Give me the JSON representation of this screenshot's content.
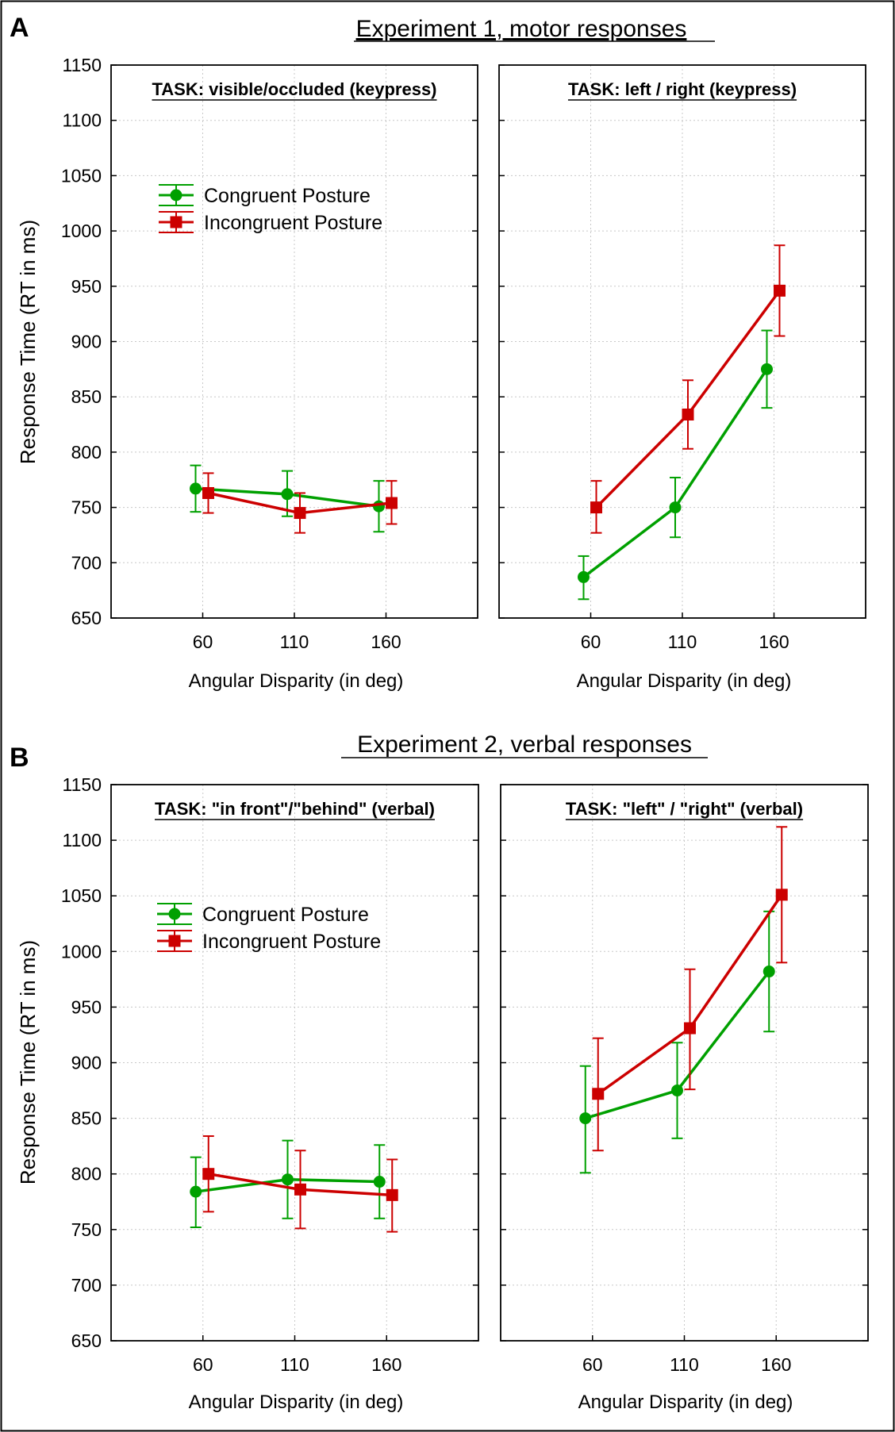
{
  "figure": {
    "panels": [
      {
        "letter": "A",
        "title": "Experiment 1, motor responses",
        "ylabel": "Response Time (RT in ms)",
        "xlabel": "Angular Disparity (in deg)"
      },
      {
        "letter": "B",
        "title": "Experiment 2, verbal responses",
        "ylabel": "Response Time (RT in ms)",
        "xlabel": "Angular Disparity (in deg)"
      }
    ],
    "legend": {
      "congruent": "Congruent Posture",
      "incongruent": "Incongruent Posture"
    },
    "y_ticks": [
      "650",
      "700",
      "750",
      "800",
      "850",
      "900",
      "950",
      "1000",
      "1050",
      "1100",
      "1150"
    ],
    "x_ticks": [
      "60",
      "110",
      "160"
    ]
  },
  "colors": {
    "congruent": "#00a000",
    "incongruent": "#cc0000",
    "grid": "#c8c8c8"
  },
  "chart_data": [
    {
      "type": "line",
      "panel": "A",
      "subtitle": "TASK: visible/occluded (keypress)",
      "title": "Experiment 1, motor responses",
      "xlabel": "Angular Disparity (in deg)",
      "ylabel": "Response Time (RT in ms)",
      "categories": [
        "60",
        "110",
        "160"
      ],
      "ylim": [
        650,
        1150
      ],
      "legend": true,
      "series": [
        {
          "name": "Congruent Posture",
          "values": [
            767,
            762,
            751
          ],
          "err_low": [
            746,
            742,
            728
          ],
          "err_high": [
            788,
            783,
            774
          ]
        },
        {
          "name": "Incongruent Posture",
          "values": [
            763,
            745,
            754
          ],
          "err_low": [
            745,
            727,
            735
          ],
          "err_high": [
            781,
            763,
            774
          ]
        }
      ]
    },
    {
      "type": "line",
      "panel": "A",
      "subtitle": "TASK: left / right (keypress)",
      "title": "Experiment 1, motor responses",
      "xlabel": "Angular Disparity (in deg)",
      "ylabel": "",
      "categories": [
        "60",
        "110",
        "160"
      ],
      "ylim": [
        650,
        1150
      ],
      "legend": false,
      "series": [
        {
          "name": "Congruent Posture",
          "values": [
            687,
            750,
            875
          ],
          "err_low": [
            667,
            723,
            840
          ],
          "err_high": [
            706,
            777,
            910
          ]
        },
        {
          "name": "Incongruent Posture",
          "values": [
            750,
            834,
            946
          ],
          "err_low": [
            727,
            803,
            905
          ],
          "err_high": [
            774,
            865,
            987
          ]
        }
      ]
    },
    {
      "type": "line",
      "panel": "B",
      "subtitle": "TASK: \"in front\"/\"behind\" (verbal)",
      "title": "Experiment 2, verbal responses",
      "xlabel": "Angular Disparity (in deg)",
      "ylabel": "Response Time (RT in ms)",
      "categories": [
        "60",
        "110",
        "160"
      ],
      "ylim": [
        650,
        1150
      ],
      "legend": true,
      "series": [
        {
          "name": "Congruent Posture",
          "values": [
            784,
            795,
            793
          ],
          "err_low": [
            752,
            760,
            760
          ],
          "err_high": [
            815,
            830,
            826
          ]
        },
        {
          "name": "Incongruent Posture",
          "values": [
            800,
            786,
            781
          ],
          "err_low": [
            766,
            751,
            748
          ],
          "err_high": [
            834,
            821,
            813
          ]
        }
      ]
    },
    {
      "type": "line",
      "panel": "B",
      "subtitle": "TASK: \"left\" / \"right\" (verbal)",
      "title": "Experiment 2, verbal responses",
      "xlabel": "Angular Disparity (in deg)",
      "ylabel": "",
      "categories": [
        "60",
        "110",
        "160"
      ],
      "ylim": [
        650,
        1150
      ],
      "legend": false,
      "series": [
        {
          "name": "Congruent Posture",
          "values": [
            850,
            875,
            982
          ],
          "err_low": [
            801,
            832,
            928
          ],
          "err_high": [
            897,
            918,
            1036
          ]
        },
        {
          "name": "Incongruent Posture",
          "values": [
            872,
            931,
            1051
          ],
          "err_low": [
            821,
            876,
            990
          ],
          "err_high": [
            922,
            984,
            1112
          ]
        }
      ]
    }
  ]
}
